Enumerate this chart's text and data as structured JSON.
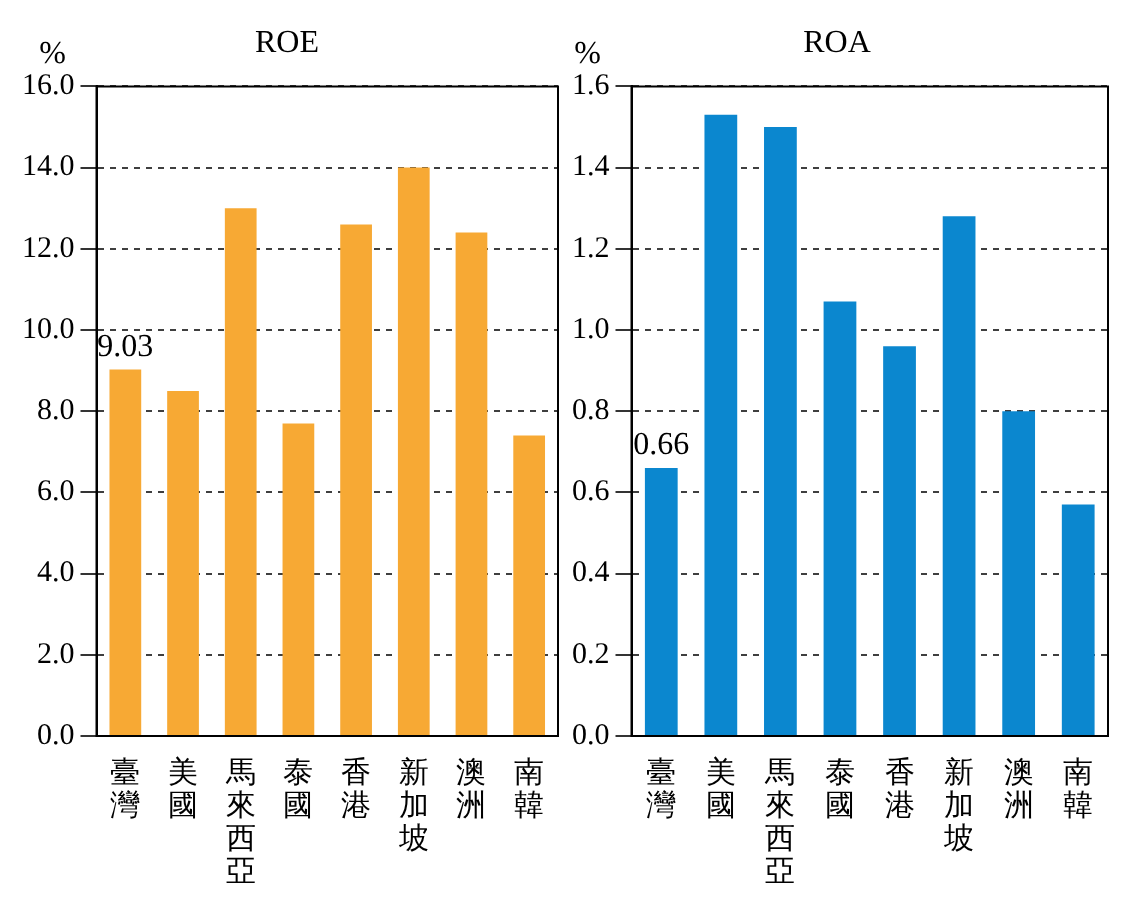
{
  "chart_data": [
    {
      "type": "bar",
      "title": "ROE",
      "ylabel": "%",
      "categories": [
        "臺灣",
        "美國",
        "馬來西亞",
        "泰國",
        "香港",
        "新加坡",
        "澳洲",
        "南韓"
      ],
      "values": [
        9.03,
        8.5,
        13.0,
        7.7,
        12.6,
        14.0,
        12.4,
        7.4
      ],
      "color": "#f7a934",
      "value_labels": [
        "9.03",
        null,
        null,
        null,
        null,
        null,
        null,
        null
      ],
      "ylim": [
        0,
        16
      ],
      "yticks": [
        {
          "value": 0,
          "label": "0.0"
        },
        {
          "value": 2,
          "label": "2.0"
        },
        {
          "value": 4,
          "label": "4.0"
        },
        {
          "value": 6,
          "label": "6.0"
        },
        {
          "value": 8,
          "label": "8.0"
        },
        {
          "value": 10,
          "label": "10.0"
        },
        {
          "value": 12,
          "label": "12.0"
        },
        {
          "value": 14,
          "label": "14.0"
        },
        {
          "value": 16,
          "label": "16.0"
        }
      ],
      "grid": "y"
    },
    {
      "type": "bar",
      "title": "ROA",
      "ylabel": "%",
      "categories": [
        "臺灣",
        "美國",
        "馬來西亞",
        "泰國",
        "香港",
        "新加坡",
        "澳洲",
        "南韓"
      ],
      "values": [
        0.66,
        1.53,
        1.5,
        1.07,
        0.96,
        1.28,
        0.8,
        0.57
      ],
      "color": "#0b87cf",
      "value_labels": [
        "0.66",
        null,
        null,
        null,
        null,
        null,
        null,
        null
      ],
      "ylim": [
        0,
        1.6
      ],
      "yticks": [
        {
          "value": 0,
          "label": "0.0"
        },
        {
          "value": 0.2,
          "label": "0.2"
        },
        {
          "value": 0.4,
          "label": "0.4"
        },
        {
          "value": 0.6,
          "label": "0.6"
        },
        {
          "value": 0.8,
          "label": "0.8"
        },
        {
          "value": 1.0,
          "label": "1.0"
        },
        {
          "value": 1.2,
          "label": "1.2"
        },
        {
          "value": 1.4,
          "label": "1.4"
        },
        {
          "value": 1.6,
          "label": "1.6"
        }
      ],
      "grid": "y"
    }
  ]
}
